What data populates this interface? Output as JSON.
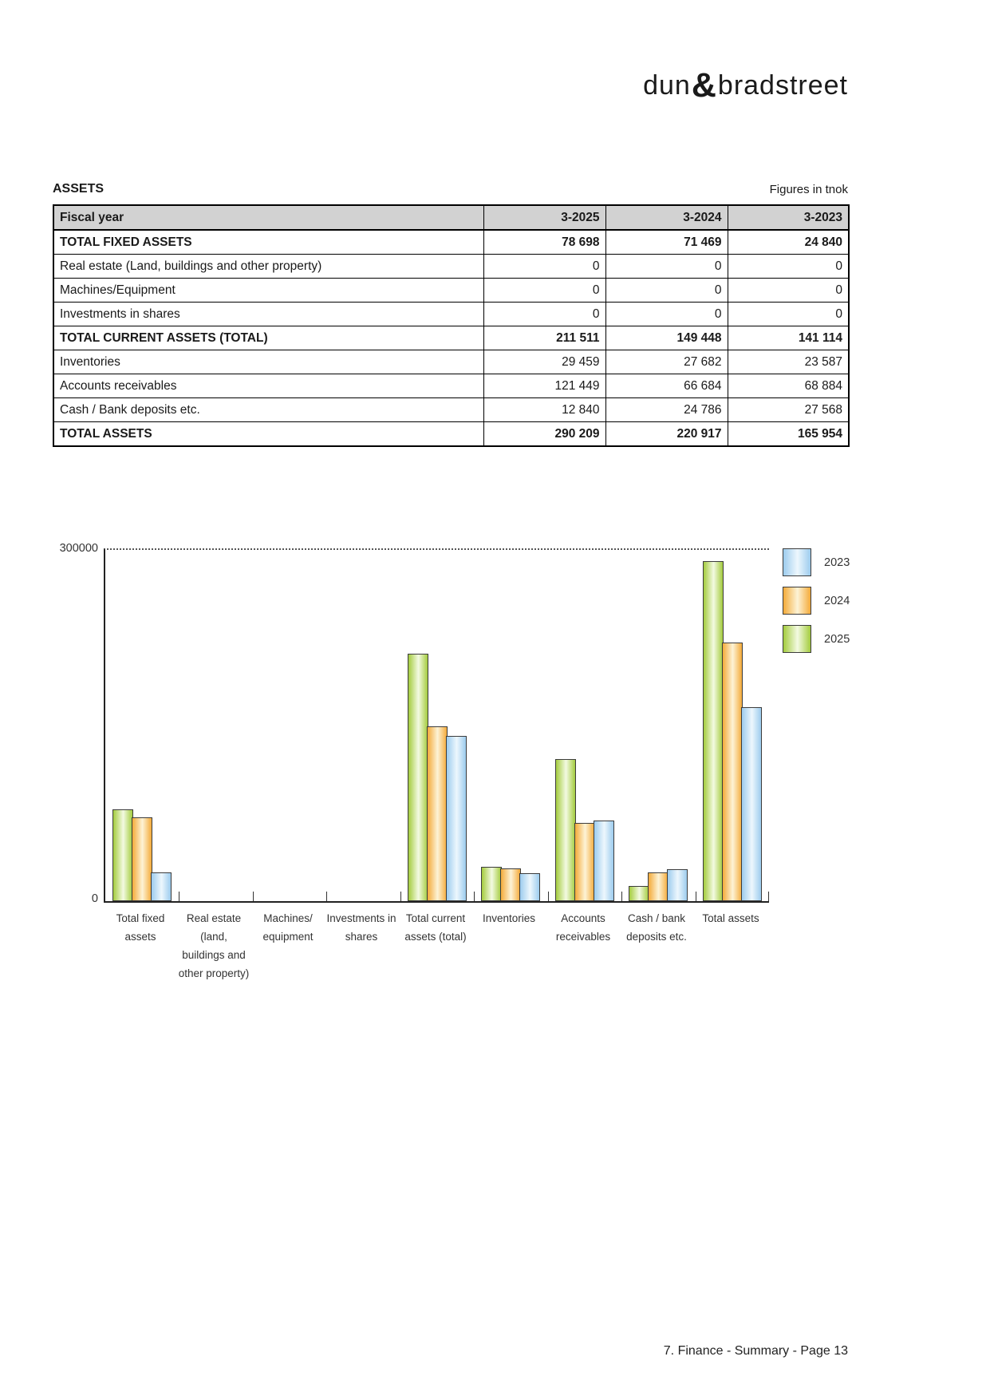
{
  "logo": {
    "word1": "dun",
    "ampersand": "&",
    "word2": "bradstreet",
    "word1_color": "#4d7c9c",
    "amp_color": "#2e4d66",
    "word2_color": "#5fa0c7"
  },
  "header": {
    "section_title": "ASSETS",
    "units_note": "Figures in tnok"
  },
  "table": {
    "columns": [
      "Fiscal year",
      "3-2025",
      "3-2024",
      "3-2023"
    ],
    "rows": [
      {
        "label": "TOTAL FIXED ASSETS",
        "values": [
          "78 698",
          "71 469",
          "24 840"
        ],
        "bold": true
      },
      {
        "label": "Real estate (Land, buildings and other property)",
        "values": [
          "0",
          "0",
          "0"
        ],
        "bold": false
      },
      {
        "label": "Machines/Equipment",
        "values": [
          "0",
          "0",
          "0"
        ],
        "bold": false
      },
      {
        "label": "Investments in shares",
        "values": [
          "0",
          "0",
          "0"
        ],
        "bold": false
      },
      {
        "label": "TOTAL CURRENT ASSETS (TOTAL)",
        "values": [
          "211 511",
          "149 448",
          "141 114"
        ],
        "bold": true
      },
      {
        "label": "Inventories",
        "values": [
          "29 459",
          "27 682",
          "23 587"
        ],
        "bold": false
      },
      {
        "label": "Accounts receivables",
        "values": [
          "121 449",
          "66 684",
          "68 884"
        ],
        "bold": false
      },
      {
        "label": "Cash / Bank deposits etc.",
        "values": [
          "12 840",
          "24 786",
          "27 568"
        ],
        "bold": false
      },
      {
        "label": "TOTAL ASSETS",
        "values": [
          "290 209",
          "220 917",
          "165 954"
        ],
        "bold": true
      }
    ]
  },
  "chart_data": {
    "type": "bar",
    "title": "",
    "xlabel": "",
    "ylabel": "",
    "ylim": [
      0,
      300000
    ],
    "ytick_labels": {
      "max": "300000",
      "min": "0"
    },
    "grid": "single dotted line at ymax",
    "legend_position": "top-right",
    "legend_order": [
      "2023",
      "2024",
      "2025"
    ],
    "categories": [
      {
        "name": "Total fixed assets",
        "lines": [
          "Total fixed",
          "assets"
        ]
      },
      {
        "name": "Real estate (land, buildings and other property)",
        "lines": [
          "Real estate",
          "(land,",
          "buildings and",
          "other property)"
        ]
      },
      {
        "name": "Machines/equipment",
        "lines": [
          "Machines/",
          "equipment"
        ]
      },
      {
        "name": "Investments in shares",
        "lines": [
          "Investments in",
          "shares"
        ]
      },
      {
        "name": "Total current assets (total)",
        "lines": [
          "Total current",
          "assets (total)"
        ]
      },
      {
        "name": "Inventories",
        "lines": [
          "Inventories"
        ]
      },
      {
        "name": "Accounts receivables",
        "lines": [
          "Accounts",
          "receivables"
        ]
      },
      {
        "name": "Cash / bank deposits etc.",
        "lines": [
          "Cash / bank",
          "deposits etc."
        ]
      },
      {
        "name": "Total assets",
        "lines": [
          "Total assets"
        ]
      }
    ],
    "series": [
      {
        "name": "2025",
        "color_edge": "#a4cc3e",
        "color_mid": "#f3fae2",
        "values": [
          78698,
          0,
          0,
          0,
          211511,
          29459,
          121449,
          12840,
          290209
        ]
      },
      {
        "name": "2024",
        "color_edge": "#f4ab3a",
        "color_mid": "#fdf3d6",
        "values": [
          71469,
          0,
          0,
          0,
          149448,
          27682,
          66684,
          24786,
          220917
        ]
      },
      {
        "name": "2023",
        "color_edge": "#9dccee",
        "color_mid": "#edf7fd",
        "values": [
          24840,
          0,
          0,
          0,
          141114,
          23587,
          68884,
          27568,
          165954
        ]
      }
    ]
  },
  "footer": {
    "text": "7. Finance - Summary - Page 13"
  }
}
